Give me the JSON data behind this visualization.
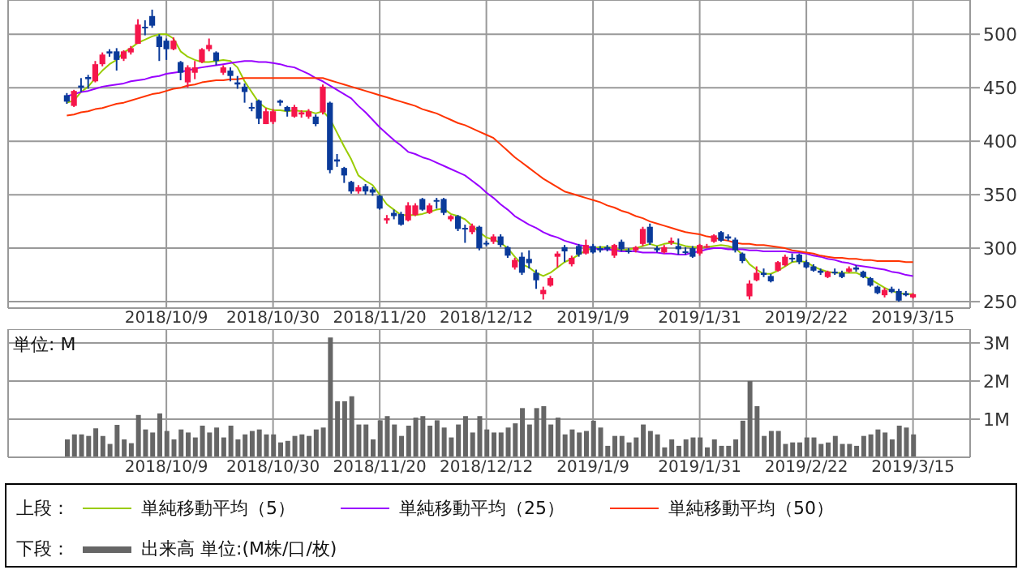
{
  "chart_data": [
    {
      "type": "candlestick",
      "ylim": [
        244,
        532
      ],
      "yticks": [
        250,
        300,
        350,
        400,
        450,
        500
      ],
      "categories": [
        null,
        null,
        null,
        null,
        null,
        null,
        null,
        null,
        null,
        null,
        null,
        null,
        null,
        null,
        "2018/10/9",
        null,
        null,
        null,
        null,
        null,
        null,
        null,
        null,
        null,
        null,
        null,
        null,
        null,
        null,
        "2018/10/30",
        null,
        null,
        null,
        null,
        null,
        null,
        null,
        null,
        null,
        null,
        null,
        null,
        null,
        null,
        "2018/11/20",
        null,
        null,
        null,
        null,
        null,
        null,
        null,
        null,
        null,
        null,
        null,
        null,
        null,
        null,
        "2018/12/12",
        null,
        null,
        null,
        null,
        null,
        null,
        null,
        null,
        null,
        null,
        null,
        null,
        null,
        null,
        "2019/1/9",
        null,
        null,
        null,
        null,
        null,
        null,
        null,
        null,
        null,
        null,
        null,
        null,
        null,
        null,
        "2019/1/31",
        null,
        null,
        null,
        null,
        null,
        null,
        null,
        null,
        null,
        null,
        null,
        null,
        null,
        null,
        "2019/2/22",
        null,
        null,
        null,
        null,
        null,
        null,
        null,
        null,
        null,
        null,
        null,
        null,
        null,
        null,
        "2019/3/15"
      ],
      "grid": true,
      "legend": "bottom",
      "legend_title": "上段：",
      "ohlc": [
        [
          443,
          445,
          435,
          437
        ],
        [
          433,
          448,
          432,
          447
        ],
        [
          452,
          459,
          446,
          450
        ],
        [
          460,
          462,
          449,
          458
        ],
        [
          456,
          475,
          455,
          472
        ],
        [
          472,
          483,
          470,
          481
        ],
        [
          484,
          486,
          479,
          482
        ],
        [
          484,
          487,
          466,
          476
        ],
        [
          477,
          485,
          475,
          484
        ],
        [
          483,
          489,
          481,
          487
        ],
        [
          491,
          514,
          491,
          509
        ],
        [
          507,
          513,
          499,
          506
        ],
        [
          517,
          523,
          506,
          508
        ],
        [
          498,
          500,
          475,
          488
        ],
        [
          494,
          496,
          476,
          486
        ],
        [
          486,
          497,
          485,
          494
        ],
        [
          474,
          475,
          457,
          464
        ],
        [
          455,
          471,
          450,
          469
        ],
        [
          464,
          475,
          458,
          469
        ],
        [
          474,
          487,
          473,
          486
        ],
        [
          486,
          496,
          484,
          490
        ],
        [
          483,
          484,
          471,
          475
        ],
        [
          464,
          471,
          462,
          469
        ],
        [
          466,
          469,
          456,
          461
        ],
        [
          455,
          461,
          449,
          453
        ],
        [
          451,
          454,
          436,
          446
        ],
        [
          432,
          436,
          428,
          431
        ],
        [
          438,
          439,
          416,
          421
        ],
        [
          416,
          431,
          416,
          428
        ],
        [
          418,
          430,
          416,
          428
        ],
        [
          438,
          439,
          433,
          436
        ],
        [
          432,
          433,
          423,
          428
        ],
        [
          423,
          434,
          422,
          432
        ],
        [
          425,
          429,
          422,
          427
        ],
        [
          423,
          430,
          421,
          428
        ],
        [
          423,
          425,
          414,
          416
        ],
        [
          427,
          453,
          425,
          451
        ],
        [
          436,
          437,
          370,
          373
        ],
        [
          383,
          388,
          376,
          381
        ],
        [
          375,
          376,
          361,
          368
        ],
        [
          362,
          363,
          351,
          353
        ],
        [
          353,
          359,
          351,
          357
        ],
        [
          358,
          360,
          350,
          353
        ],
        [
          355,
          357,
          349,
          352
        ],
        [
          349,
          350,
          336,
          337
        ],
        [
          326,
          331,
          323,
          328
        ],
        [
          333,
          336,
          327,
          330
        ],
        [
          332,
          334,
          321,
          322
        ],
        [
          326,
          343,
          325,
          340
        ],
        [
          331,
          342,
          330,
          340
        ],
        [
          346,
          347,
          335,
          336
        ],
        [
          333,
          342,
          332,
          340
        ],
        [
          345,
          347,
          337,
          344
        ],
        [
          346,
          347,
          331,
          333
        ],
        [
          327,
          331,
          325,
          330
        ],
        [
          330,
          331,
          316,
          318
        ],
        [
          319,
          322,
          305,
          318
        ],
        [
          315,
          323,
          313,
          321
        ],
        [
          320,
          321,
          298,
          300
        ],
        [
          305,
          307,
          302,
          304
        ],
        [
          306,
          313,
          304,
          311
        ],
        [
          311,
          313,
          301,
          303
        ],
        [
          301,
          302,
          291,
          293
        ],
        [
          282,
          291,
          280,
          289
        ],
        [
          292,
          296,
          275,
          277
        ],
        [
          290,
          298,
          281,
          286
        ],
        [
          277,
          280,
          262,
          270
        ],
        [
          257,
          264,
          252,
          261
        ],
        [
          265,
          274,
          264,
          272
        ],
        [
          292,
          297,
          282,
          295
        ],
        [
          301,
          303,
          287,
          297
        ],
        [
          285,
          293,
          283,
          291
        ],
        [
          302,
          304,
          292,
          294
        ],
        [
          295,
          308,
          294,
          303
        ],
        [
          302,
          304,
          295,
          296
        ],
        [
          300,
          302,
          296,
          298
        ],
        [
          301,
          303,
          297,
          299
        ],
        [
          293,
          304,
          291,
          303
        ],
        [
          306,
          308,
          297,
          299
        ],
        [
          298,
          300,
          295,
          297
        ],
        [
          298,
          302,
          296,
          301
        ],
        [
          304,
          320,
          302,
          318
        ],
        [
          320,
          323,
          303,
          305
        ],
        [
          300,
          302,
          296,
          298
        ],
        [
          296,
          303,
          295,
          301
        ],
        [
          305,
          310,
          303,
          307
        ],
        [
          302,
          309,
          294,
          299
        ],
        [
          297,
          301,
          294,
          296
        ],
        [
          300,
          302,
          291,
          292
        ],
        [
          295,
          304,
          293,
          303
        ],
        [
          301,
          304,
          300,
          302
        ],
        [
          306,
          313,
          305,
          312
        ],
        [
          315,
          316,
          306,
          307
        ],
        [
          311,
          313,
          307,
          309
        ],
        [
          308,
          310,
          296,
          298
        ],
        [
          295,
          296,
          286,
          288
        ],
        [
          255,
          270,
          252,
          267
        ],
        [
          270,
          283,
          269,
          277
        ],
        [
          277,
          281,
          273,
          275
        ],
        [
          274,
          276,
          268,
          269
        ],
        [
          279,
          288,
          278,
          287
        ],
        [
          284,
          294,
          283,
          292
        ],
        [
          291,
          295,
          287,
          290
        ],
        [
          294,
          295,
          285,
          287
        ],
        [
          287,
          289,
          281,
          282
        ],
        [
          283,
          285,
          278,
          279
        ],
        [
          279,
          281,
          275,
          277
        ],
        [
          273,
          279,
          272,
          278
        ],
        [
          278,
          281,
          275,
          277
        ],
        [
          277,
          279,
          272,
          273
        ],
        [
          278,
          283,
          277,
          281
        ],
        [
          282,
          284,
          278,
          280
        ],
        [
          278,
          279,
          272,
          273
        ],
        [
          272,
          273,
          264,
          265
        ],
        [
          264,
          265,
          257,
          258
        ],
        [
          256,
          263,
          254,
          261
        ],
        [
          262,
          264,
          258,
          259
        ],
        [
          260,
          262,
          250,
          251
        ],
        [
          258,
          260,
          255,
          256
        ],
        [
          254,
          258,
          253,
          257
        ]
      ],
      "series": [
        {
          "type": "line",
          "name": "単純移動平均（5）",
          "color": "#99cc00",
          "values": [
            436,
            438,
            446,
            451,
            459,
            466,
            472,
            476,
            483,
            487,
            492,
            495,
            498,
            500,
            500,
            496,
            484,
            479,
            476,
            474,
            474,
            475,
            476,
            475,
            469,
            456,
            446,
            436,
            431,
            429,
            429,
            428,
            429,
            428,
            428,
            426,
            428,
            421,
            408,
            395,
            383,
            368,
            363,
            359,
            350,
            341,
            336,
            331,
            331,
            331,
            332,
            334,
            336,
            337,
            332,
            330,
            327,
            321,
            315,
            310,
            308,
            305,
            300,
            292,
            285,
            282,
            277,
            274,
            277,
            282,
            287,
            290,
            294,
            298,
            300,
            301,
            301,
            300,
            298,
            299,
            300,
            302,
            304,
            302,
            304,
            305,
            304,
            302,
            301,
            301,
            301,
            302,
            303,
            302,
            300,
            294,
            285,
            280,
            276,
            276,
            279,
            283,
            287,
            288,
            287,
            283,
            280,
            278,
            277,
            277,
            277,
            277,
            274,
            271,
            267,
            263,
            260,
            258,
            257,
            257
          ]
        },
        {
          "type": "line",
          "name": "単純移動平均（25）",
          "color": "#9900ff",
          "values": [
            442,
            444,
            446,
            447,
            449,
            451,
            452,
            453,
            454,
            456,
            457,
            458,
            460,
            461,
            463,
            464,
            465,
            466,
            468,
            469,
            470,
            471,
            472,
            473,
            474,
            475,
            475,
            474,
            474,
            473,
            472,
            470,
            469,
            466,
            463,
            459,
            456,
            452,
            448,
            444,
            440,
            433,
            427,
            420,
            413,
            407,
            401,
            396,
            390,
            388,
            385,
            383,
            380,
            377,
            374,
            371,
            368,
            363,
            358,
            352,
            347,
            341,
            336,
            330,
            326,
            322,
            319,
            315,
            312,
            310,
            307,
            305,
            303,
            302,
            300,
            299,
            299,
            298,
            297,
            297,
            297,
            296,
            296,
            296,
            295,
            295,
            294,
            294,
            296,
            297,
            299,
            300,
            300,
            299,
            299,
            299,
            298,
            298,
            297,
            297,
            297,
            297,
            296,
            296,
            295,
            293,
            292,
            290,
            289,
            287,
            286,
            284,
            283,
            282,
            281,
            280,
            278,
            277,
            275,
            274
          ]
        },
        {
          "type": "line",
          "name": "単純移動平均（50）",
          "color": "#ff3300",
          "values": [
            424,
            425,
            427,
            428,
            430,
            431,
            433,
            435,
            436,
            438,
            440,
            442,
            444,
            445,
            447,
            449,
            450,
            452,
            453,
            455,
            456,
            457,
            457,
            458,
            458,
            459,
            459,
            459,
            459,
            459,
            459,
            459,
            459,
            459,
            459,
            459,
            459,
            457,
            455,
            453,
            451,
            449,
            447,
            445,
            443,
            441,
            439,
            437,
            435,
            433,
            430,
            428,
            426,
            423,
            420,
            417,
            415,
            412,
            409,
            406,
            403,
            397,
            391,
            385,
            380,
            375,
            370,
            365,
            361,
            357,
            353,
            351,
            349,
            347,
            345,
            343,
            340,
            338,
            335,
            333,
            330,
            328,
            325,
            323,
            321,
            319,
            317,
            315,
            314,
            313,
            311,
            310,
            308,
            307,
            305,
            304,
            304,
            303,
            303,
            302,
            301,
            300,
            298,
            297,
            296,
            295,
            293,
            292,
            291,
            291,
            290,
            290,
            289,
            289,
            288,
            288,
            288,
            288,
            287,
            287
          ]
        }
      ]
    },
    {
      "type": "bar",
      "ylim": [
        0,
        3.36
      ],
      "yticks": [
        {
          "value": 1,
          "label": "1M"
        },
        {
          "value": 2,
          "label": "2M"
        },
        {
          "value": 3,
          "label": "3M"
        }
      ],
      "categories": [
        null,
        null,
        null,
        null,
        null,
        null,
        null,
        null,
        null,
        null,
        null,
        null,
        null,
        null,
        "2018/10/9",
        null,
        null,
        null,
        null,
        null,
        null,
        null,
        null,
        null,
        null,
        null,
        null,
        null,
        null,
        "2018/10/30",
        null,
        null,
        null,
        null,
        null,
        null,
        null,
        null,
        null,
        null,
        null,
        null,
        null,
        null,
        "2018/11/20",
        null,
        null,
        null,
        null,
        null,
        null,
        null,
        null,
        null,
        null,
        null,
        null,
        null,
        null,
        "2018/12/12",
        null,
        null,
        null,
        null,
        null,
        null,
        null,
        null,
        null,
        null,
        null,
        null,
        null,
        null,
        "2019/1/9",
        null,
        null,
        null,
        null,
        null,
        null,
        null,
        null,
        null,
        null,
        null,
        null,
        null,
        null,
        "2019/1/31",
        null,
        null,
        null,
        null,
        null,
        null,
        null,
        null,
        null,
        null,
        null,
        null,
        null,
        null,
        "2019/2/22",
        null,
        null,
        null,
        null,
        null,
        null,
        null,
        null,
        null,
        null,
        null,
        null,
        null,
        null,
        "2019/3/15"
      ],
      "grid": true,
      "legend": "bottom",
      "legend_title": "下段：",
      "annotations": [
        "単位: M"
      ],
      "series": [
        {
          "name": "出来高 単位:(M株/口/枚)",
          "color": "#666666",
          "values": [
            0.47,
            0.6,
            0.6,
            0.56,
            0.76,
            0.56,
            0.35,
            0.85,
            0.47,
            0.37,
            1.11,
            0.73,
            0.65,
            1.15,
            0.69,
            0.47,
            0.73,
            0.65,
            0.52,
            0.83,
            0.65,
            0.78,
            0.52,
            0.83,
            0.47,
            0.6,
            0.69,
            0.73,
            0.6,
            0.6,
            0.39,
            0.43,
            0.56,
            0.6,
            0.56,
            0.73,
            0.78,
            3.14,
            1.47,
            1.47,
            1.6,
            0.86,
            0.86,
            0.47,
            0.97,
            1.08,
            0.86,
            0.56,
            0.83,
            1.04,
            1.08,
            0.83,
            0.97,
            0.78,
            0.52,
            0.86,
            1.08,
            0.65,
            1.08,
            0.73,
            0.65,
            0.65,
            0.78,
            0.89,
            1.29,
            0.86,
            1.29,
            1.34,
            0.86,
            1.04,
            0.6,
            0.73,
            0.65,
            0.69,
            0.96,
            0.78,
            0.3,
            0.56,
            0.56,
            0.39,
            0.52,
            0.86,
            0.69,
            0.6,
            0.26,
            0.47,
            0.3,
            0.47,
            0.52,
            0.52,
            0.26,
            0.47,
            0.3,
            0.3,
            0.47,
            0.96,
            2.0,
            1.34,
            0.56,
            0.69,
            0.69,
            0.35,
            0.39,
            0.39,
            0.52,
            0.52,
            0.35,
            0.39,
            0.56,
            0.35,
            0.35,
            0.3,
            0.56,
            0.6,
            0.73,
            0.65,
            0.47,
            0.83,
            0.78,
            0.6
          ]
        }
      ]
    }
  ]
}
